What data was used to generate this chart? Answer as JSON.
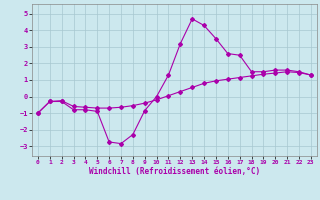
{
  "xlabel": "Windchill (Refroidissement éolien,°C)",
  "xlim": [
    -0.5,
    23.5
  ],
  "ylim": [
    -3.6,
    5.6
  ],
  "yticks": [
    -3,
    -2,
    -1,
    0,
    1,
    2,
    3,
    4,
    5
  ],
  "xticks": [
    0,
    1,
    2,
    3,
    4,
    5,
    6,
    7,
    8,
    9,
    10,
    11,
    12,
    13,
    14,
    15,
    16,
    17,
    18,
    19,
    20,
    21,
    22,
    23
  ],
  "bg_color": "#cce8ee",
  "grid_color": "#a8c8d0",
  "line_color": "#aa00aa",
  "curve1_x": [
    0,
    1,
    2,
    3,
    4,
    5,
    6,
    7,
    8,
    9,
    10,
    11,
    12,
    13,
    14,
    15,
    16,
    17,
    18,
    19,
    20,
    21,
    22,
    23
  ],
  "curve1_y": [
    -1.0,
    -0.3,
    -0.3,
    -0.8,
    -0.8,
    -0.9,
    -2.75,
    -2.85,
    -2.3,
    -0.85,
    0.0,
    1.3,
    3.2,
    4.7,
    4.3,
    3.5,
    2.6,
    2.5,
    1.5,
    1.5,
    1.6,
    1.6,
    1.5,
    1.3
  ],
  "curve2_x": [
    0,
    1,
    2,
    3,
    4,
    5,
    6,
    7,
    8,
    9,
    10,
    11,
    12,
    13,
    14,
    15,
    16,
    17,
    18,
    19,
    20,
    21,
    22,
    23
  ],
  "curve2_y": [
    -1.0,
    -0.3,
    -0.25,
    -0.6,
    -0.65,
    -0.7,
    -0.7,
    -0.65,
    -0.55,
    -0.4,
    -0.2,
    0.05,
    0.3,
    0.55,
    0.8,
    0.95,
    1.05,
    1.15,
    1.25,
    1.35,
    1.42,
    1.5,
    1.45,
    1.3
  ],
  "marker": "D",
  "markersize": 2,
  "linewidth": 0.8
}
